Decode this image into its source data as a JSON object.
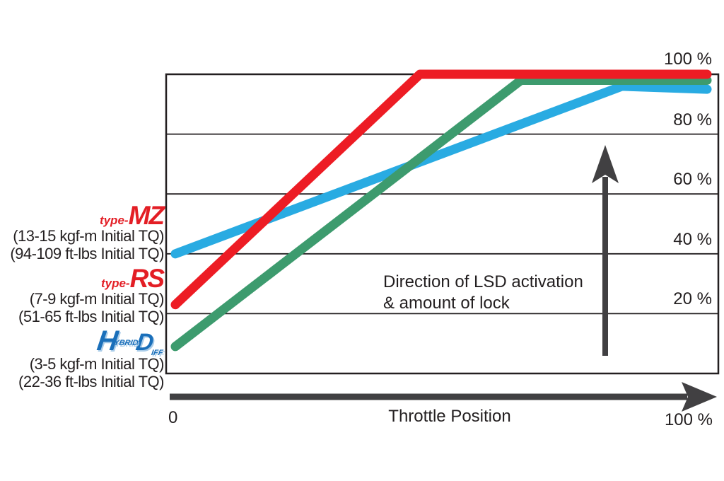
{
  "chart_data": {
    "type": "line",
    "title": "",
    "xlabel": "Throttle Position",
    "ylabel": "",
    "x_origin_label": "0",
    "x_max_label": "100 %",
    "y_tick_labels": [
      "100 %",
      "80 %",
      "60 %",
      "40 %",
      "20 %"
    ],
    "y_tick_values": [
      100,
      80,
      60,
      40,
      20
    ],
    "xlim": [
      0,
      100
    ],
    "ylim": [
      0,
      100
    ],
    "grid": "horizontal",
    "legend_position": "left-outside",
    "annotation": {
      "line1": "Direction of LSD activation",
      "line2": "& amount of lock",
      "arrow_direction": "up"
    },
    "series": [
      {
        "name": "type-MZ",
        "color": "#29ABE2",
        "points": [
          [
            0,
            40
          ],
          [
            84,
            96
          ],
          [
            100,
            95
          ]
        ]
      },
      {
        "name": "Hybrid Diff",
        "color": "#3D9B6E",
        "points": [
          [
            0,
            9
          ],
          [
            65,
            98
          ],
          [
            100,
            98
          ]
        ]
      },
      {
        "name": "type-RS",
        "color": "#ED1C24",
        "points": [
          [
            0,
            23
          ],
          [
            46,
            100
          ],
          [
            100,
            100
          ]
        ]
      }
    ]
  },
  "legend": [
    {
      "brand_prefix": "type-",
      "brand_name": "MZ",
      "brand_color": "#E31E25",
      "line_color": "#29ABE2",
      "spec_metric": "(13-15 kgf-m Initial TQ)",
      "spec_imperial": "(94-109 ft-lbs Initial TQ)"
    },
    {
      "brand_prefix": "type-",
      "brand_name": "RS",
      "brand_color": "#E31E25",
      "line_color": "#ED1C24",
      "spec_metric": "(7-9 kgf-m Initial TQ)",
      "spec_imperial": "(51-65 ft-lbs Initial TQ)"
    },
    {
      "brand_name": "Hybrid Diff",
      "logo": {
        "h": "H",
        "sup": "YBRID",
        "d": "D",
        "sub": "IFF"
      },
      "brand_color": "#1A6FBA",
      "line_color": "#3D9B6E",
      "spec_metric": "(3-5 kgf-m Initial TQ)",
      "spec_imperial": "(22-36 ft-lbs Initial TQ)"
    }
  ],
  "colors": {
    "background": "#FFFFFF",
    "grid_and_border": "#231F20",
    "text": "#231F20",
    "axis_arrow": "#414042"
  }
}
